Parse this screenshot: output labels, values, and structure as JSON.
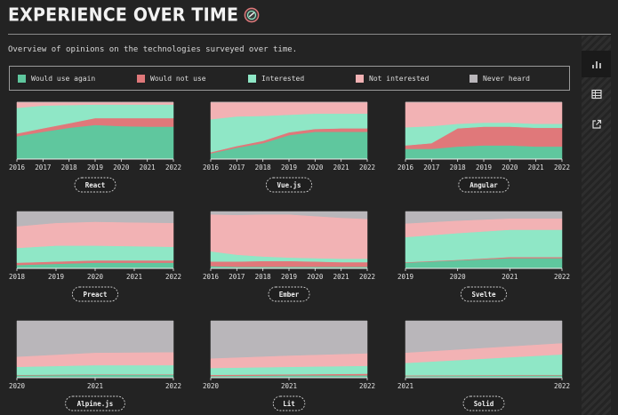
{
  "header": {
    "title": "EXPERIENCE OVER TIME",
    "subtitle": "Overview of opinions on the technologies surveyed over time."
  },
  "icons": {
    "title_icon": "share-badge-icon",
    "sidebar": [
      "bar-chart-icon",
      "table-icon",
      "external-link-icon"
    ]
  },
  "legend": [
    {
      "key": "would_use",
      "label": "Would use again",
      "color": "#5fc79e"
    },
    {
      "key": "would_not",
      "label": "Would not use",
      "color": "#e0787a"
    },
    {
      "key": "interested",
      "label": "Interested",
      "color": "#8fe7c6"
    },
    {
      "key": "not_interested",
      "label": "Not interested",
      "color": "#f2b2b4"
    },
    {
      "key": "never_heard",
      "label": "Never heard",
      "color": "#b9b6ba"
    }
  ],
  "chart_data": [
    {
      "type": "area",
      "title": "React",
      "x": [
        2016,
        2017,
        2018,
        2019,
        2020,
        2021,
        2022
      ],
      "series": {
        "would_use": [
          40,
          48,
          55,
          60,
          58,
          57,
          57
        ],
        "would_not": [
          5,
          6,
          8,
          12,
          14,
          15,
          15
        ],
        "interested": [
          45,
          40,
          32,
          24,
          24,
          24,
          24
        ],
        "not_interested": [
          10,
          6,
          5,
          4,
          4,
          4,
          4
        ],
        "never_heard": [
          0,
          0,
          0,
          0,
          0,
          0,
          0
        ]
      }
    },
    {
      "type": "area",
      "title": "Vue.js",
      "x": [
        2016,
        2017,
        2018,
        2019,
        2020,
        2021,
        2022
      ],
      "series": {
        "would_use": [
          10,
          20,
          28,
          42,
          48,
          48,
          48
        ],
        "would_not": [
          2,
          3,
          4,
          5,
          5,
          6,
          6
        ],
        "interested": [
          58,
          52,
          44,
          31,
          27,
          26,
          26
        ],
        "not_interested": [
          30,
          25,
          24,
          22,
          20,
          20,
          20
        ],
        "never_heard": [
          0,
          0,
          0,
          0,
          0,
          0,
          0
        ]
      }
    },
    {
      "type": "area",
      "title": "Angular",
      "x": [
        2016,
        2017,
        2018,
        2019,
        2020,
        2021,
        2022
      ],
      "series": {
        "would_use": [
          18,
          18,
          22,
          24,
          24,
          22,
          22
        ],
        "would_not": [
          6,
          10,
          32,
          33,
          33,
          33,
          33
        ],
        "interested": [
          32,
          30,
          8,
          7,
          7,
          7,
          7
        ],
        "not_interested": [
          44,
          42,
          38,
          36,
          36,
          38,
          38
        ],
        "never_heard": [
          0,
          0,
          0,
          0,
          0,
          0,
          0
        ]
      }
    },
    {
      "type": "area",
      "title": "Preact",
      "x": [
        2018,
        2019,
        2020,
        2021,
        2022
      ],
      "series": {
        "would_use": [
          6,
          8,
          10,
          10,
          10
        ],
        "would_not": [
          4,
          4,
          4,
          4,
          4
        ],
        "interested": [
          26,
          28,
          26,
          25,
          24
        ],
        "not_interested": [
          38,
          40,
          42,
          42,
          42
        ],
        "never_heard": [
          26,
          20,
          18,
          19,
          20
        ]
      }
    },
    {
      "type": "area",
      "title": "Ember",
      "x": [
        2016,
        2017,
        2018,
        2019,
        2020,
        2021,
        2022
      ],
      "series": {
        "would_use": [
          4,
          3,
          3,
          3,
          3,
          3,
          3
        ],
        "would_not": [
          8,
          9,
          10,
          10,
          9,
          8,
          8
        ],
        "interested": [
          18,
          12,
          8,
          6,
          6,
          6,
          6
        ],
        "not_interested": [
          65,
          70,
          74,
          76,
          74,
          72,
          70
        ],
        "never_heard": [
          5,
          6,
          5,
          5,
          8,
          11,
          13
        ]
      }
    },
    {
      "type": "area",
      "title": "Svelte",
      "x": [
        2019,
        2020,
        2021,
        2022
      ],
      "series": {
        "would_use": [
          10,
          14,
          18,
          18
        ],
        "would_not": [
          1,
          1,
          2,
          2
        ],
        "interested": [
          44,
          47,
          48,
          48
        ],
        "not_interested": [
          24,
          22,
          20,
          20
        ],
        "never_heard": [
          21,
          16,
          12,
          12
        ]
      }
    },
    {
      "type": "area",
      "title": "Alpine.js",
      "x": [
        2020,
        2021,
        2022
      ],
      "series": {
        "would_use": [
          4,
          5,
          5
        ],
        "would_not": [
          1,
          1,
          1
        ],
        "interested": [
          14,
          16,
          16
        ],
        "not_interested": [
          18,
          22,
          23
        ],
        "never_heard": [
          63,
          56,
          55
        ]
      }
    },
    {
      "type": "area",
      "title": "Lit",
      "x": [
        2020,
        2021,
        2022
      ],
      "series": {
        "would_use": [
          3,
          4,
          4
        ],
        "would_not": [
          2,
          2,
          3
        ],
        "interested": [
          12,
          13,
          14
        ],
        "not_interested": [
          17,
          20,
          22
        ],
        "never_heard": [
          66,
          61,
          57
        ]
      }
    },
    {
      "type": "area",
      "title": "Solid",
      "x": [
        2021,
        2022
      ],
      "series": {
        "would_use": [
          3,
          4
        ],
        "would_not": [
          1,
          1
        ],
        "interested": [
          22,
          36
        ],
        "not_interested": [
          18,
          20
        ],
        "never_heard": [
          56,
          39
        ]
      }
    }
  ]
}
